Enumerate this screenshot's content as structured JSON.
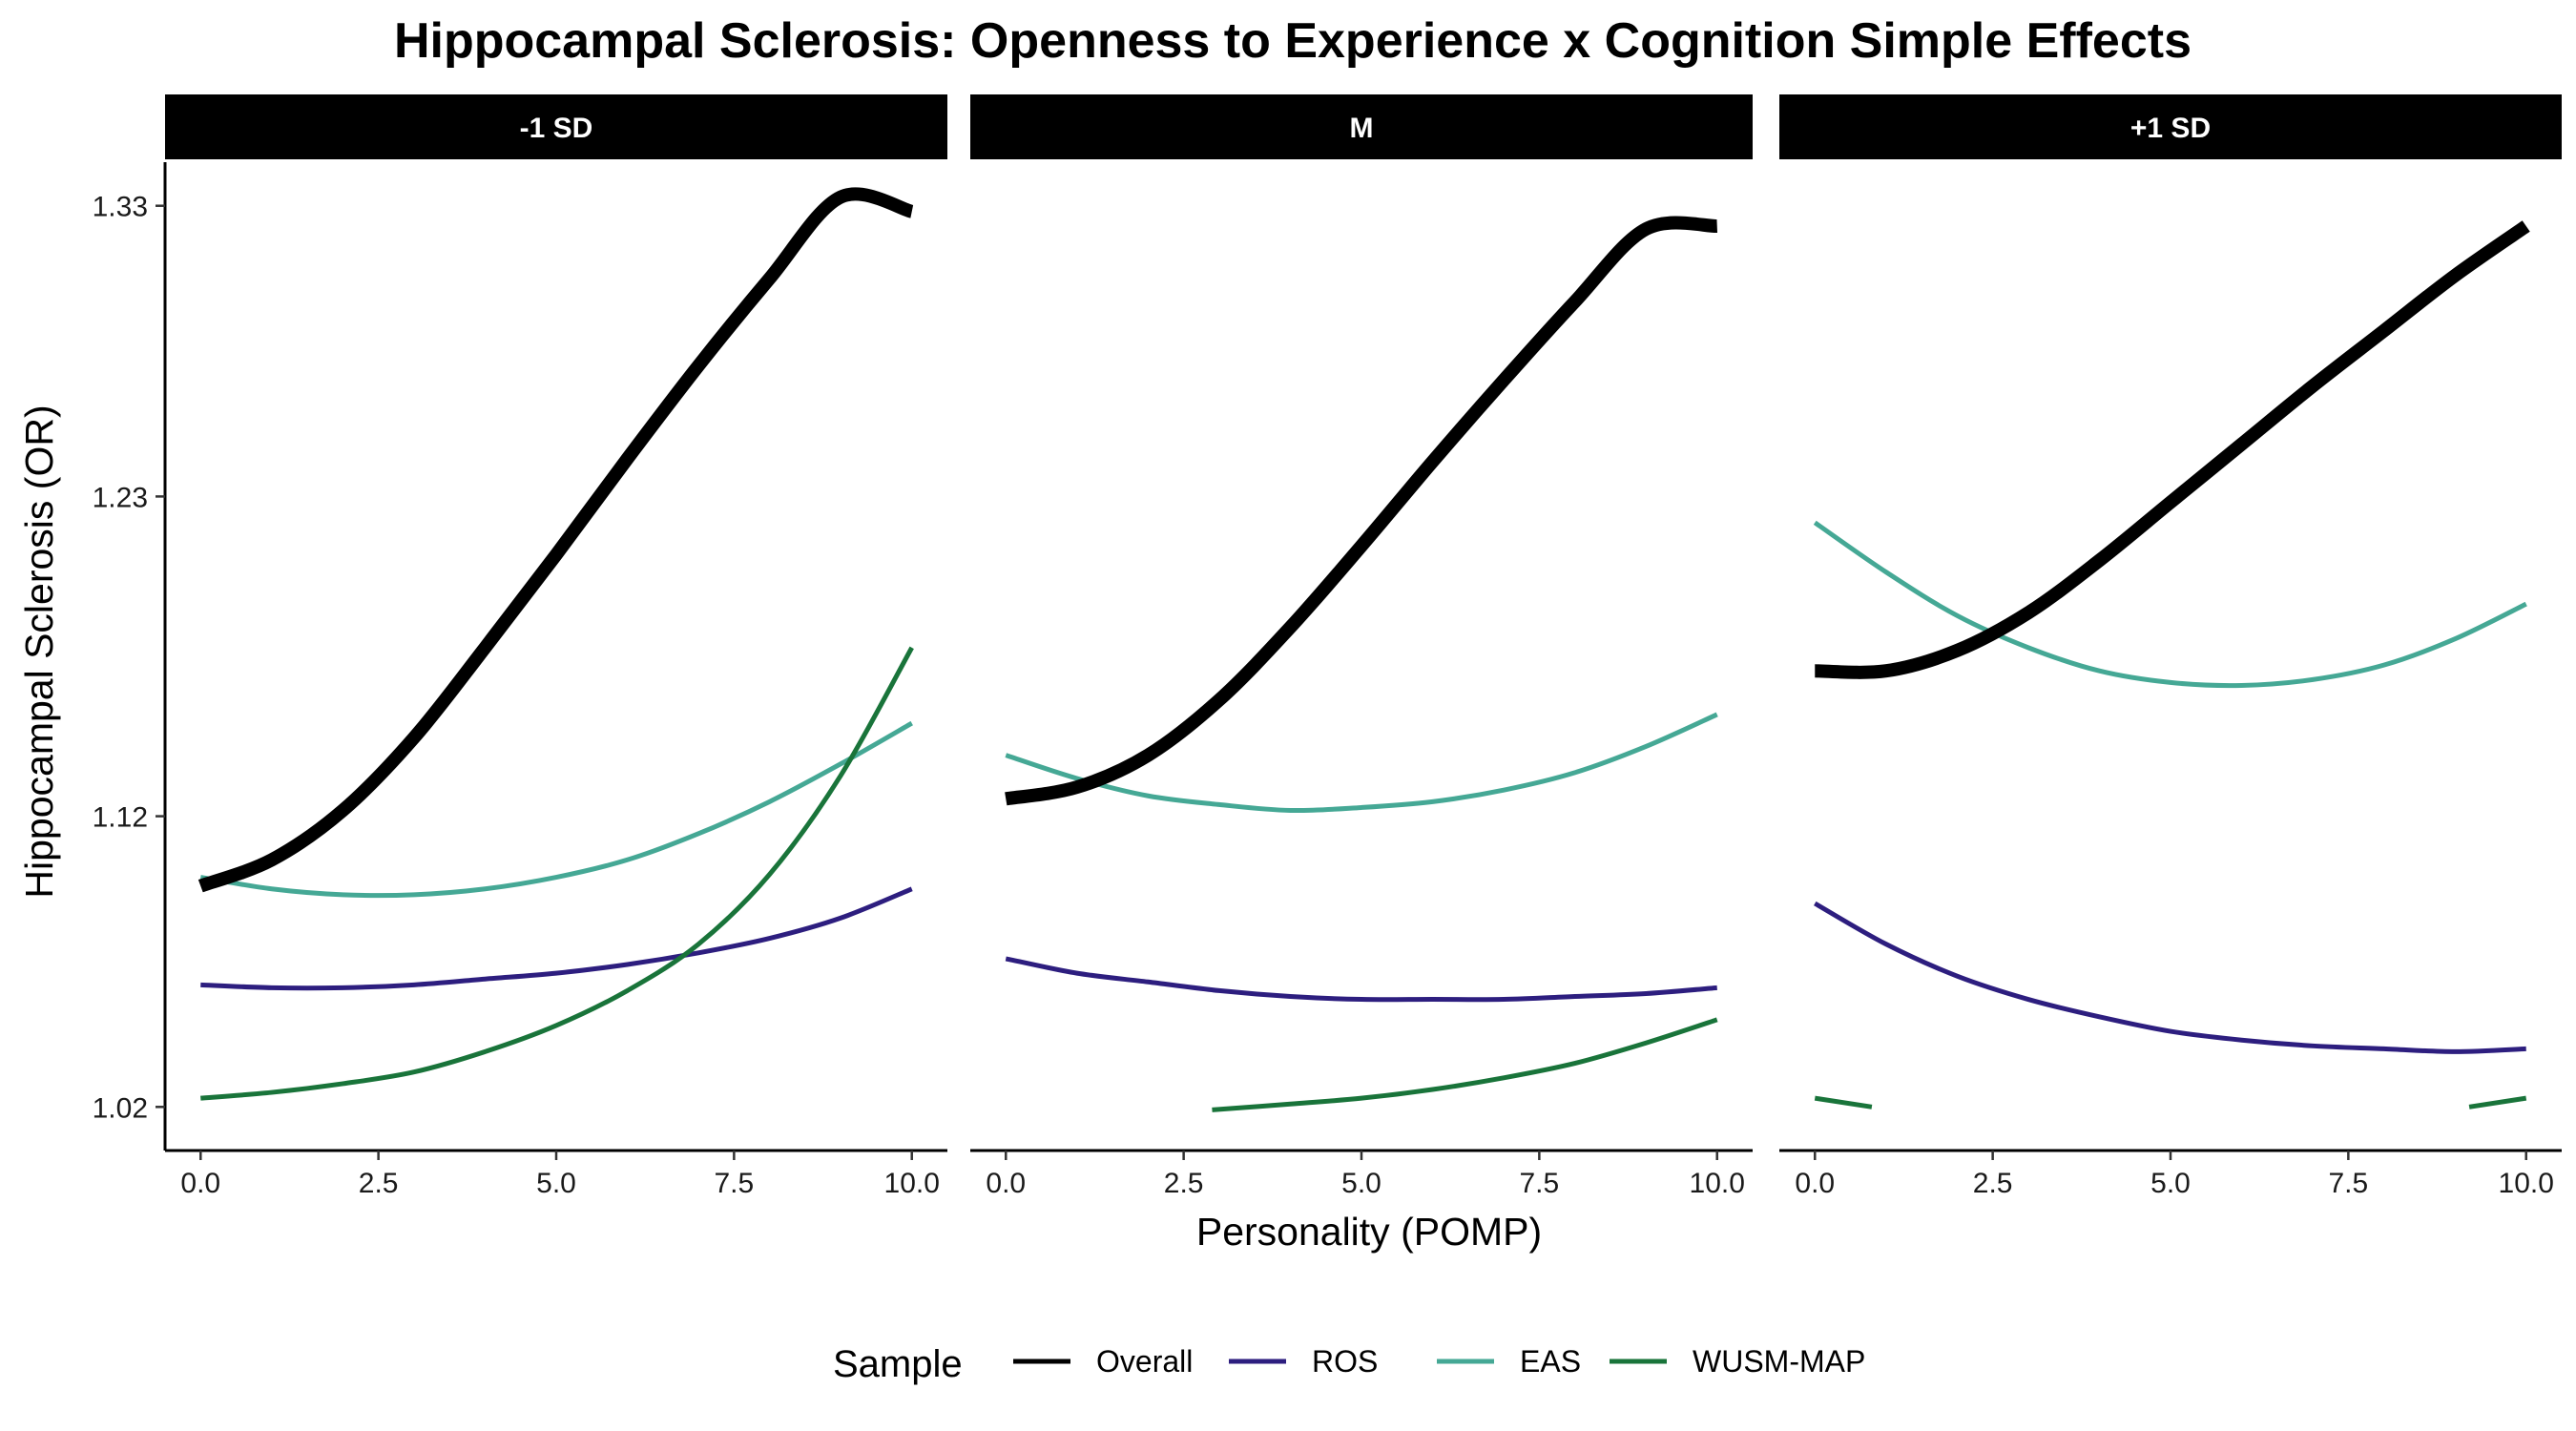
{
  "chart_data": {
    "type": "line",
    "title": "Hippocampal Sclerosis: Openness to Experience x Cognition Simple Effects",
    "xlabel": "Personality (POMP)",
    "ylabel": "Hippocampal Sclerosis (OR)",
    "xlim": [
      -0.5,
      10.5
    ],
    "ylim": [
      1.005,
      1.345
    ],
    "x_ticks": [
      0,
      2.5,
      5,
      7.5,
      10
    ],
    "x_tick_labels": [
      "0.0",
      "2.5",
      "5.0",
      "7.5",
      "10.0"
    ],
    "y_ticks": [
      1.02,
      1.12,
      1.23,
      1.33
    ],
    "y_tick_labels": [
      "1.02",
      "1.12",
      "1.23",
      "1.33"
    ],
    "legend_title": "Sample",
    "legend_position": "bottom",
    "series_styles": [
      {
        "name": "Overall",
        "color": "#000000",
        "width": 14
      },
      {
        "name": "ROS",
        "color": "#2d1e7f",
        "width": 5
      },
      {
        "name": "EAS",
        "color": "#45a895",
        "width": 5
      },
      {
        "name": "WUSM-MAP",
        "color": "#19743a",
        "width": 5
      }
    ],
    "panels": [
      {
        "label": "-1 SD",
        "series": [
          {
            "name": "Overall",
            "x": [
              0,
              1,
              2,
              3,
              4,
              5,
              6,
              7,
              8,
              9,
              10
            ],
            "y": [
              1.096,
              1.105,
              1.122,
              1.147,
              1.178,
              1.21,
              1.243,
              1.275,
              1.305,
              1.333,
              1.328
            ]
          },
          {
            "name": "ROS",
            "x": [
              0,
              1,
              2,
              3,
              4,
              5,
              6,
              7,
              8,
              9,
              10
            ],
            "y": [
              1.062,
              1.061,
              1.061,
              1.062,
              1.064,
              1.066,
              1.069,
              1.073,
              1.078,
              1.085,
              1.095
            ]
          },
          {
            "name": "EAS",
            "x": [
              0,
              1,
              2,
              3,
              4,
              5,
              6,
              7,
              8,
              9,
              10
            ],
            "y": [
              1.099,
              1.095,
              1.093,
              1.093,
              1.095,
              1.099,
              1.105,
              1.114,
              1.125,
              1.138,
              1.152
            ]
          },
          {
            "name": "WUSM-MAP",
            "x": [
              0,
              1,
              2,
              3,
              4,
              5,
              6,
              7,
              8,
              9,
              10
            ],
            "y": [
              1.023,
              1.025,
              1.028,
              1.032,
              1.039,
              1.048,
              1.06,
              1.076,
              1.1,
              1.134,
              1.178
            ]
          }
        ]
      },
      {
        "label": "M",
        "series": [
          {
            "name": "Overall",
            "x": [
              0,
              1,
              2,
              3,
              4,
              5,
              6,
              7,
              8,
              9,
              10
            ],
            "y": [
              1.126,
              1.13,
              1.141,
              1.16,
              1.185,
              1.213,
              1.242,
              1.27,
              1.297,
              1.322,
              1.323
            ]
          },
          {
            "name": "ROS",
            "x": [
              0,
              1,
              2,
              3,
              4,
              5,
              6,
              7,
              8,
              9,
              10
            ],
            "y": [
              1.071,
              1.066,
              1.063,
              1.06,
              1.058,
              1.057,
              1.057,
              1.057,
              1.058,
              1.059,
              1.061
            ]
          },
          {
            "name": "EAS",
            "x": [
              0,
              1,
              2,
              3,
              4,
              5,
              6,
              7,
              8,
              9,
              10
            ],
            "y": [
              1.141,
              1.133,
              1.127,
              1.124,
              1.122,
              1.123,
              1.125,
              1.129,
              1.135,
              1.144,
              1.155
            ]
          },
          {
            "name": "WUSM-MAP",
            "x": [
              2.9,
              4,
              5,
              6,
              7,
              8,
              9,
              10
            ],
            "y": [
              1.019,
              1.021,
              1.023,
              1.026,
              1.03,
              1.035,
              1.042,
              1.05
            ]
          }
        ]
      },
      {
        "label": "+1 SD",
        "series": [
          {
            "name": "Overall",
            "x": [
              0,
              1,
              2,
              3,
              4,
              5,
              6,
              7,
              8,
              9,
              10
            ],
            "y": [
              1.17,
              1.17,
              1.177,
              1.19,
              1.208,
              1.228,
              1.248,
              1.268,
              1.287,
              1.306,
              1.323
            ]
          },
          {
            "name": "ROS",
            "x": [
              0,
              1,
              2,
              3,
              4,
              5,
              6,
              7,
              8,
              9,
              10
            ],
            "y": [
              1.09,
              1.076,
              1.065,
              1.057,
              1.051,
              1.046,
              1.043,
              1.041,
              1.04,
              1.039,
              1.04
            ]
          },
          {
            "name": "EAS",
            "x": [
              0,
              1,
              2,
              3,
              4,
              5,
              6,
              7,
              8,
              9,
              10
            ],
            "y": [
              1.221,
              1.204,
              1.189,
              1.178,
              1.17,
              1.166,
              1.165,
              1.167,
              1.172,
              1.181,
              1.193
            ]
          },
          {
            "name": "WUSM-MAP",
            "segments": [
              {
                "x": [
                  0,
                  0.8
                ],
                "y": [
                  1.023,
                  1.02
                ]
              },
              {
                "x": [
                  9.2,
                  10
                ],
                "y": [
                  1.02,
                  1.023
                ]
              }
            ]
          }
        ]
      }
    ]
  }
}
